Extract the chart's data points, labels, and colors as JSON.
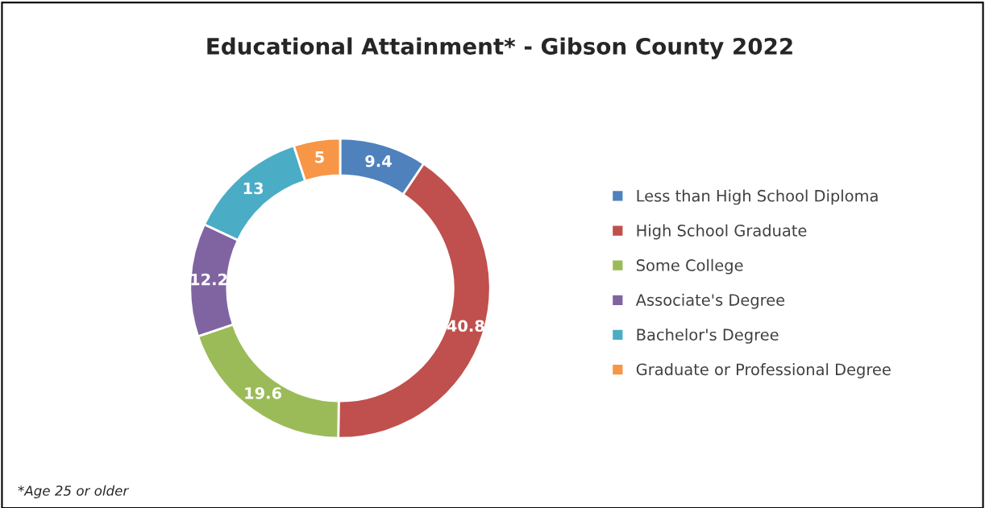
{
  "chart_data": {
    "type": "donut",
    "title": "Educational Attainment* - Gibson County 2022",
    "categories": [
      "Less than High School Diploma",
      "High School Graduate",
      "Some College",
      "Associate's Degree",
      "Bachelor's Degree",
      "Graduate or Professional Degree"
    ],
    "values": [
      9.4,
      40.8,
      19.6,
      12.2,
      13,
      5
    ],
    "colors": [
      "#4f81bd",
      "#c0504d",
      "#9bbb59",
      "#8064a2",
      "#4bacc6",
      "#f79646"
    ],
    "data_labels": true,
    "legend": "right",
    "annotations": [
      "*Age 25 or older"
    ]
  }
}
